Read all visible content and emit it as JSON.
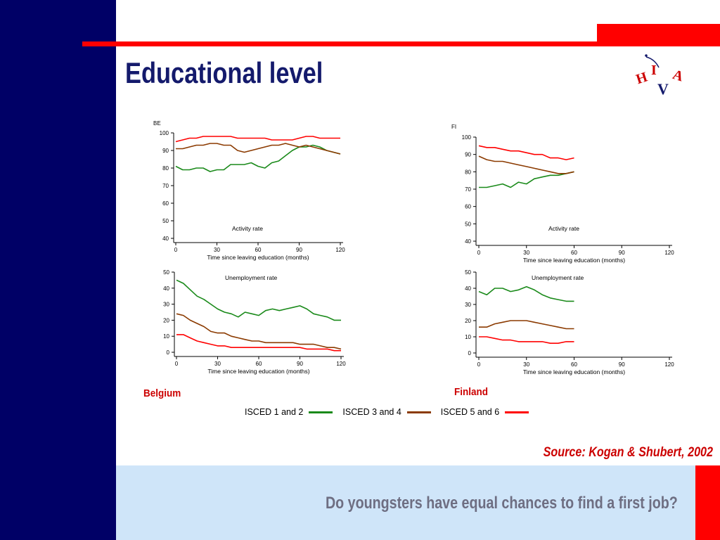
{
  "slide": {
    "title": "Educational level",
    "source": "Source: Kogan & Shubert,  2002",
    "footer": "Do youngsters have equal chances to find a first job?",
    "logo_letters": [
      "H",
      "I",
      "V",
      "A"
    ]
  },
  "colors": {
    "navy": "#000066",
    "red": "#ff0000",
    "footer_band": "#cfe5f9",
    "title": "#141a6c",
    "isced12": "#1a8a1a",
    "isced34": "#8b3a00",
    "isced56": "#ff0000"
  },
  "legend": [
    {
      "label": "ISCED 1 and 2",
      "color": "#1a8a1a"
    },
    {
      "label": "ISCED 3 and 4",
      "color": "#8b3a00"
    },
    {
      "label": "ISCED 5 and 6",
      "color": "#ff0000"
    }
  ],
  "countries": {
    "be": "Belgium",
    "fi": "Finland"
  },
  "chart_data": [
    {
      "type": "line",
      "panel": "be_activity",
      "corner_label": "BE",
      "annotation": "Activity rate",
      "xlabel": "Time since leaving education (months)",
      "ylabel": "",
      "xlim": [
        0,
        120
      ],
      "ylim": [
        40,
        100
      ],
      "xticks": [
        0,
        30,
        60,
        90,
        120
      ],
      "yticks": [
        40,
        50,
        60,
        70,
        80,
        90,
        100
      ],
      "series": [
        {
          "color": "#1a8a1a",
          "x": [
            0,
            5,
            10,
            15,
            20,
            25,
            30,
            35,
            40,
            45,
            50,
            55,
            60,
            65,
            70,
            75,
            80,
            85,
            90,
            95,
            100,
            105,
            110,
            115,
            120
          ],
          "y": [
            81,
            79,
            79,
            80,
            80,
            78,
            79,
            79,
            82,
            82,
            82,
            83,
            81,
            80,
            83,
            84,
            87,
            90,
            92,
            92,
            93,
            92,
            90,
            89,
            88
          ]
        },
        {
          "color": "#8b3a00",
          "x": [
            0,
            5,
            10,
            15,
            20,
            25,
            30,
            35,
            40,
            45,
            50,
            55,
            60,
            65,
            70,
            75,
            80,
            85,
            90,
            95,
            100,
            105,
            110,
            115,
            120
          ],
          "y": [
            91,
            91,
            92,
            93,
            93,
            94,
            94,
            93,
            93,
            90,
            89,
            90,
            91,
            92,
            93,
            93,
            94,
            93,
            92,
            93,
            92,
            91,
            90,
            89,
            88
          ]
        },
        {
          "color": "#ff0000",
          "x": [
            0,
            5,
            10,
            15,
            20,
            25,
            30,
            35,
            40,
            45,
            50,
            55,
            60,
            65,
            70,
            75,
            80,
            85,
            90,
            95,
            100,
            105,
            110,
            115,
            120
          ],
          "y": [
            95,
            96,
            97,
            97,
            98,
            98,
            98,
            98,
            98,
            97,
            97,
            97,
            97,
            97,
            96,
            96,
            96,
            96,
            97,
            98,
            98,
            97,
            97,
            97,
            97
          ]
        }
      ]
    },
    {
      "type": "line",
      "panel": "be_unemployment",
      "corner_label": "",
      "annotation": "Unemployment rate",
      "xlabel": "Time since leaving education (months)",
      "ylabel": "",
      "xlim": [
        0,
        120
      ],
      "ylim": [
        0,
        50
      ],
      "xticks": [
        0,
        30,
        60,
        90,
        120
      ],
      "yticks": [
        0,
        10,
        20,
        30,
        40,
        50
      ],
      "series": [
        {
          "color": "#1a8a1a",
          "x": [
            0,
            5,
            10,
            15,
            20,
            25,
            30,
            35,
            40,
            45,
            50,
            55,
            60,
            65,
            70,
            75,
            80,
            85,
            90,
            95,
            100,
            105,
            110,
            115,
            120
          ],
          "y": [
            45,
            43,
            39,
            35,
            33,
            30,
            27,
            25,
            24,
            22,
            25,
            24,
            23,
            26,
            27,
            26,
            27,
            28,
            29,
            27,
            24,
            23,
            22,
            20,
            20
          ]
        },
        {
          "color": "#8b3a00",
          "x": [
            0,
            5,
            10,
            15,
            20,
            25,
            30,
            35,
            40,
            45,
            50,
            55,
            60,
            65,
            70,
            75,
            80,
            85,
            90,
            95,
            100,
            105,
            110,
            115,
            120
          ],
          "y": [
            24,
            23,
            20,
            18,
            16,
            13,
            12,
            12,
            10,
            9,
            8,
            7,
            7,
            6,
            6,
            6,
            6,
            6,
            5,
            5,
            5,
            4,
            3,
            3,
            2
          ]
        },
        {
          "color": "#ff0000",
          "x": [
            0,
            5,
            10,
            15,
            20,
            25,
            30,
            35,
            40,
            45,
            50,
            55,
            60,
            65,
            70,
            75,
            80,
            85,
            90,
            95,
            100,
            105,
            110,
            115,
            120
          ],
          "y": [
            11,
            11,
            9,
            7,
            6,
            5,
            4,
            4,
            3,
            3,
            3,
            3,
            3,
            3,
            3,
            3,
            3,
            3,
            3,
            2,
            2,
            2,
            2,
            1,
            1
          ]
        }
      ]
    },
    {
      "type": "line",
      "panel": "fi_activity",
      "corner_label": "FI",
      "annotation": "Activity rate",
      "xlabel": "Time since leaving education (months)",
      "ylabel": "",
      "xlim": [
        0,
        120
      ],
      "ylim": [
        40,
        100
      ],
      "xticks": [
        0,
        30,
        60,
        90,
        120
      ],
      "yticks": [
        40,
        50,
        60,
        70,
        80,
        90,
        100
      ],
      "series": [
        {
          "color": "#1a8a1a",
          "x": [
            0,
            5,
            10,
            15,
            20,
            25,
            30,
            35,
            40,
            45,
            50,
            55,
            60
          ],
          "y": [
            71,
            71,
            72,
            73,
            71,
            74,
            73,
            76,
            77,
            78,
            78,
            79,
            80
          ]
        },
        {
          "color": "#8b3a00",
          "x": [
            0,
            5,
            10,
            15,
            20,
            25,
            30,
            35,
            40,
            45,
            50,
            55,
            60
          ],
          "y": [
            89,
            87,
            86,
            86,
            85,
            84,
            83,
            82,
            81,
            80,
            79,
            79,
            80
          ]
        },
        {
          "color": "#ff0000",
          "x": [
            0,
            5,
            10,
            15,
            20,
            25,
            30,
            35,
            40,
            45,
            50,
            55,
            60
          ],
          "y": [
            95,
            94,
            94,
            93,
            92,
            92,
            91,
            90,
            90,
            88,
            88,
            87,
            88
          ]
        }
      ]
    },
    {
      "type": "line",
      "panel": "fi_unemployment",
      "corner_label": "",
      "annotation": "Unemployment rate",
      "xlabel": "Time since leaving education (months)",
      "ylabel": "",
      "xlim": [
        0,
        120
      ],
      "ylim": [
        0,
        50
      ],
      "xticks": [
        0,
        30,
        60,
        90,
        120
      ],
      "yticks": [
        0,
        10,
        20,
        30,
        40,
        50
      ],
      "series": [
        {
          "color": "#1a8a1a",
          "x": [
            0,
            5,
            10,
            15,
            20,
            25,
            30,
            35,
            40,
            45,
            50,
            55,
            60
          ],
          "y": [
            38,
            36,
            40,
            40,
            38,
            39,
            41,
            39,
            36,
            34,
            33,
            32,
            32
          ]
        },
        {
          "color": "#8b3a00",
          "x": [
            0,
            5,
            10,
            15,
            20,
            25,
            30,
            35,
            40,
            45,
            50,
            55,
            60
          ],
          "y": [
            16,
            16,
            18,
            19,
            20,
            20,
            20,
            19,
            18,
            17,
            16,
            15,
            15
          ]
        },
        {
          "color": "#ff0000",
          "x": [
            0,
            5,
            10,
            15,
            20,
            25,
            30,
            35,
            40,
            45,
            50,
            55,
            60
          ],
          "y": [
            10,
            10,
            9,
            8,
            8,
            7,
            7,
            7,
            7,
            6,
            6,
            7,
            7
          ]
        }
      ]
    }
  ]
}
